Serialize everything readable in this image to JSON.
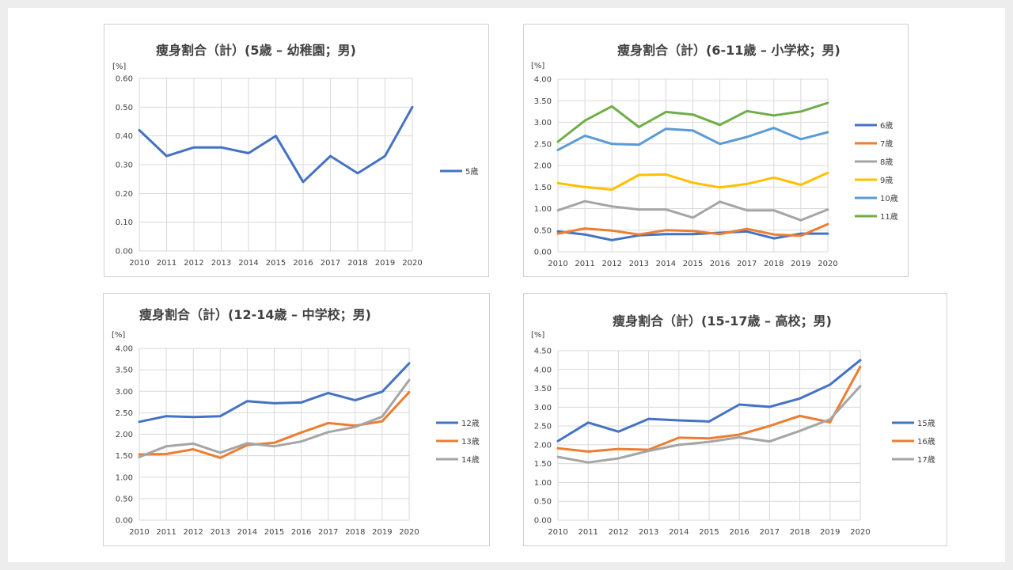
{
  "chart_data": [
    {
      "type": "line",
      "title": "痩身割合（計）(5歳 – 幼稚園；男)",
      "ylabel": "[%]",
      "x": [
        "2010",
        "2011",
        "2012",
        "2013",
        "2014",
        "2015",
        "2016",
        "2017",
        "2018",
        "2019",
        "2020"
      ],
      "ylim": [
        0,
        0.6
      ],
      "yticks": [
        "0.00",
        "0.10",
        "0.20",
        "0.30",
        "0.40",
        "0.50",
        "0.60"
      ],
      "grid": true,
      "legend_position": "right",
      "series": [
        {
          "name": "5歳",
          "color": "#4472c4",
          "values": [
            0.42,
            0.33,
            0.36,
            0.36,
            0.34,
            0.4,
            0.24,
            0.33,
            0.27,
            0.33,
            0.5
          ]
        }
      ]
    },
    {
      "type": "line",
      "title": "痩身割合（計）(6-11歳 – 小学校；男)",
      "ylabel": "[%]",
      "x": [
        "2010",
        "2011",
        "2012",
        "2013",
        "2014",
        "2015",
        "2016",
        "2017",
        "2018",
        "2019",
        "2020"
      ],
      "ylim": [
        0,
        4.0
      ],
      "yticks": [
        "0.00",
        "0.50",
        "1.00",
        "1.50",
        "2.00",
        "2.50",
        "3.00",
        "3.50",
        "4.00"
      ],
      "grid": true,
      "legend_position": "right",
      "series": [
        {
          "name": "6歳",
          "color": "#4472c4",
          "values": [
            0.47,
            0.4,
            0.27,
            0.38,
            0.41,
            0.41,
            0.44,
            0.47,
            0.31,
            0.42,
            0.42
          ]
        },
        {
          "name": "7歳",
          "color": "#ed7d31",
          "values": [
            0.42,
            0.54,
            0.49,
            0.4,
            0.5,
            0.48,
            0.41,
            0.53,
            0.4,
            0.37,
            0.64
          ]
        },
        {
          "name": "8歳",
          "color": "#a5a5a5",
          "values": [
            0.96,
            1.17,
            1.05,
            0.98,
            0.98,
            0.79,
            1.16,
            0.96,
            0.96,
            0.73,
            0.98
          ]
        },
        {
          "name": "9歳",
          "color": "#ffc000",
          "values": [
            1.59,
            1.5,
            1.44,
            1.78,
            1.79,
            1.6,
            1.49,
            1.57,
            1.72,
            1.55,
            1.83
          ]
        },
        {
          "name": "10歳",
          "color": "#5b9bd5",
          "values": [
            2.36,
            2.69,
            2.5,
            2.48,
            2.85,
            2.81,
            2.5,
            2.66,
            2.87,
            2.61,
            2.77
          ]
        },
        {
          "name": "11歳",
          "color": "#70ad47",
          "values": [
            2.55,
            3.04,
            3.37,
            2.89,
            3.24,
            3.18,
            2.94,
            3.26,
            3.16,
            3.25,
            3.45
          ]
        }
      ]
    },
    {
      "type": "line",
      "title": "痩身割合（計）(12-14歳 – 中学校；男)",
      "ylabel": "[%]",
      "x": [
        "2010",
        "2011",
        "2012",
        "2013",
        "2014",
        "2015",
        "2016",
        "2017",
        "2018",
        "2019",
        "2020"
      ],
      "ylim": [
        0,
        4.0
      ],
      "yticks": [
        "0.00",
        "0.50",
        "1.00",
        "1.50",
        "2.00",
        "2.50",
        "3.00",
        "3.50",
        "4.00"
      ],
      "grid": true,
      "legend_position": "right",
      "series": [
        {
          "name": "12歳",
          "color": "#4472c4",
          "values": [
            2.29,
            2.42,
            2.4,
            2.42,
            2.77,
            2.72,
            2.74,
            2.96,
            2.79,
            2.99,
            3.65
          ]
        },
        {
          "name": "13歳",
          "color": "#ed7d31",
          "values": [
            1.53,
            1.54,
            1.65,
            1.45,
            1.75,
            1.8,
            2.04,
            2.26,
            2.2,
            2.3,
            2.98
          ]
        },
        {
          "name": "14歳",
          "color": "#a5a5a5",
          "values": [
            1.47,
            1.72,
            1.78,
            1.57,
            1.79,
            1.72,
            1.83,
            2.05,
            2.17,
            2.41,
            3.26
          ]
        }
      ]
    },
    {
      "type": "line",
      "title": "痩身割合（計）(15-17歳 – 高校；男)",
      "ylabel": "[%]",
      "x": [
        "2010",
        "2011",
        "2012",
        "2013",
        "2014",
        "2015",
        "2016",
        "2017",
        "2018",
        "2019",
        "2020"
      ],
      "ylim": [
        0,
        4.5
      ],
      "yticks": [
        "0.00",
        "0.50",
        "1.00",
        "1.50",
        "2.00",
        "2.50",
        "3.00",
        "3.50",
        "4.00",
        "4.50"
      ],
      "grid": true,
      "legend_position": "right",
      "series": [
        {
          "name": "15歳",
          "color": "#4472c4",
          "values": [
            2.1,
            2.59,
            2.35,
            2.69,
            2.65,
            2.62,
            3.07,
            3.01,
            3.23,
            3.6,
            4.25
          ]
        },
        {
          "name": "16歳",
          "color": "#ed7d31",
          "values": [
            1.91,
            1.82,
            1.89,
            1.87,
            2.19,
            2.17,
            2.27,
            2.5,
            2.77,
            2.6,
            4.07
          ]
        },
        {
          "name": "17歳",
          "color": "#a5a5a5",
          "values": [
            1.68,
            1.53,
            1.64,
            1.84,
            2.0,
            2.08,
            2.2,
            2.09,
            2.37,
            2.68,
            3.56
          ]
        }
      ]
    }
  ]
}
